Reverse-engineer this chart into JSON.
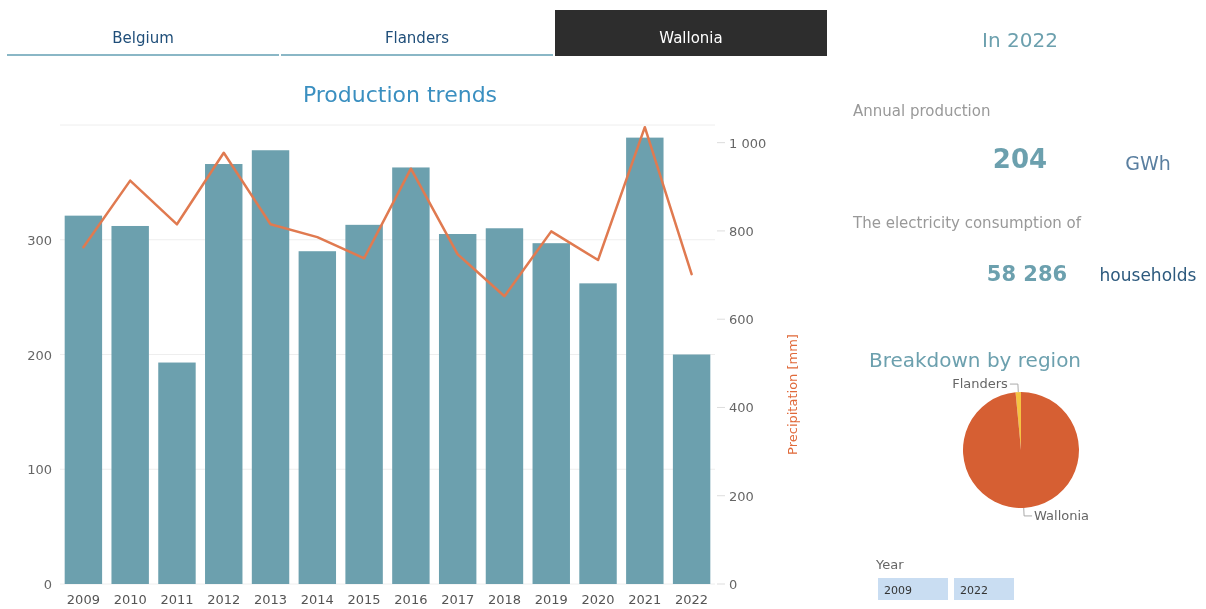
{
  "chart_data": [
    {
      "type": "bar",
      "title": "Production trends",
      "annotations": [
        "Belgium",
        "Flanders",
        "Wallonia"
      ],
      "categories": [
        "2009",
        "2010",
        "2011",
        "2012",
        "2013",
        "2014",
        "2015",
        "2016",
        "2017",
        "2018",
        "2019",
        "2020",
        "2021",
        "2022"
      ],
      "series": [
        {
          "type": "bar",
          "color": "#6ca0ae",
          "values": [
            321,
            312,
            193,
            366,
            378,
            290,
            313,
            363,
            305,
            310,
            297,
            262,
            389,
            200
          ]
        },
        {
          "type": "line",
          "axis": "y2",
          "color": "#e07a50",
          "values": [
            763,
            914,
            815,
            977,
            815,
            786,
            738,
            941,
            747,
            652,
            799,
            734,
            1035,
            702
          ]
        }
      ],
      "ylim": [
        0,
        400
      ],
      "yticks": [
        0,
        100,
        200,
        300
      ],
      "y2lim": [
        0,
        1040
      ],
      "y2ticks": [
        0,
        200,
        400,
        600,
        800,
        {
          "value": 1000,
          "label": "1 000"
        }
      ],
      "y2label": "Precipitation [mm]",
      "grid": "y"
    },
    {
      "type": "other",
      "title": "In 2022",
      "annotations": [
        "Annual production",
        "204",
        "GWh",
        "The electricity consumption of",
        "58 286",
        "households"
      ]
    },
    {
      "type": "pie",
      "title": "Breakdown by region",
      "categories": [
        "Flanders",
        "Wallonia"
      ],
      "values": [
        1.5,
        98.5
      ],
      "colors": [
        "#f5c342",
        "#d65f33"
      ],
      "annotations": [
        "Year",
        "2009",
        "2022"
      ]
    }
  ]
}
